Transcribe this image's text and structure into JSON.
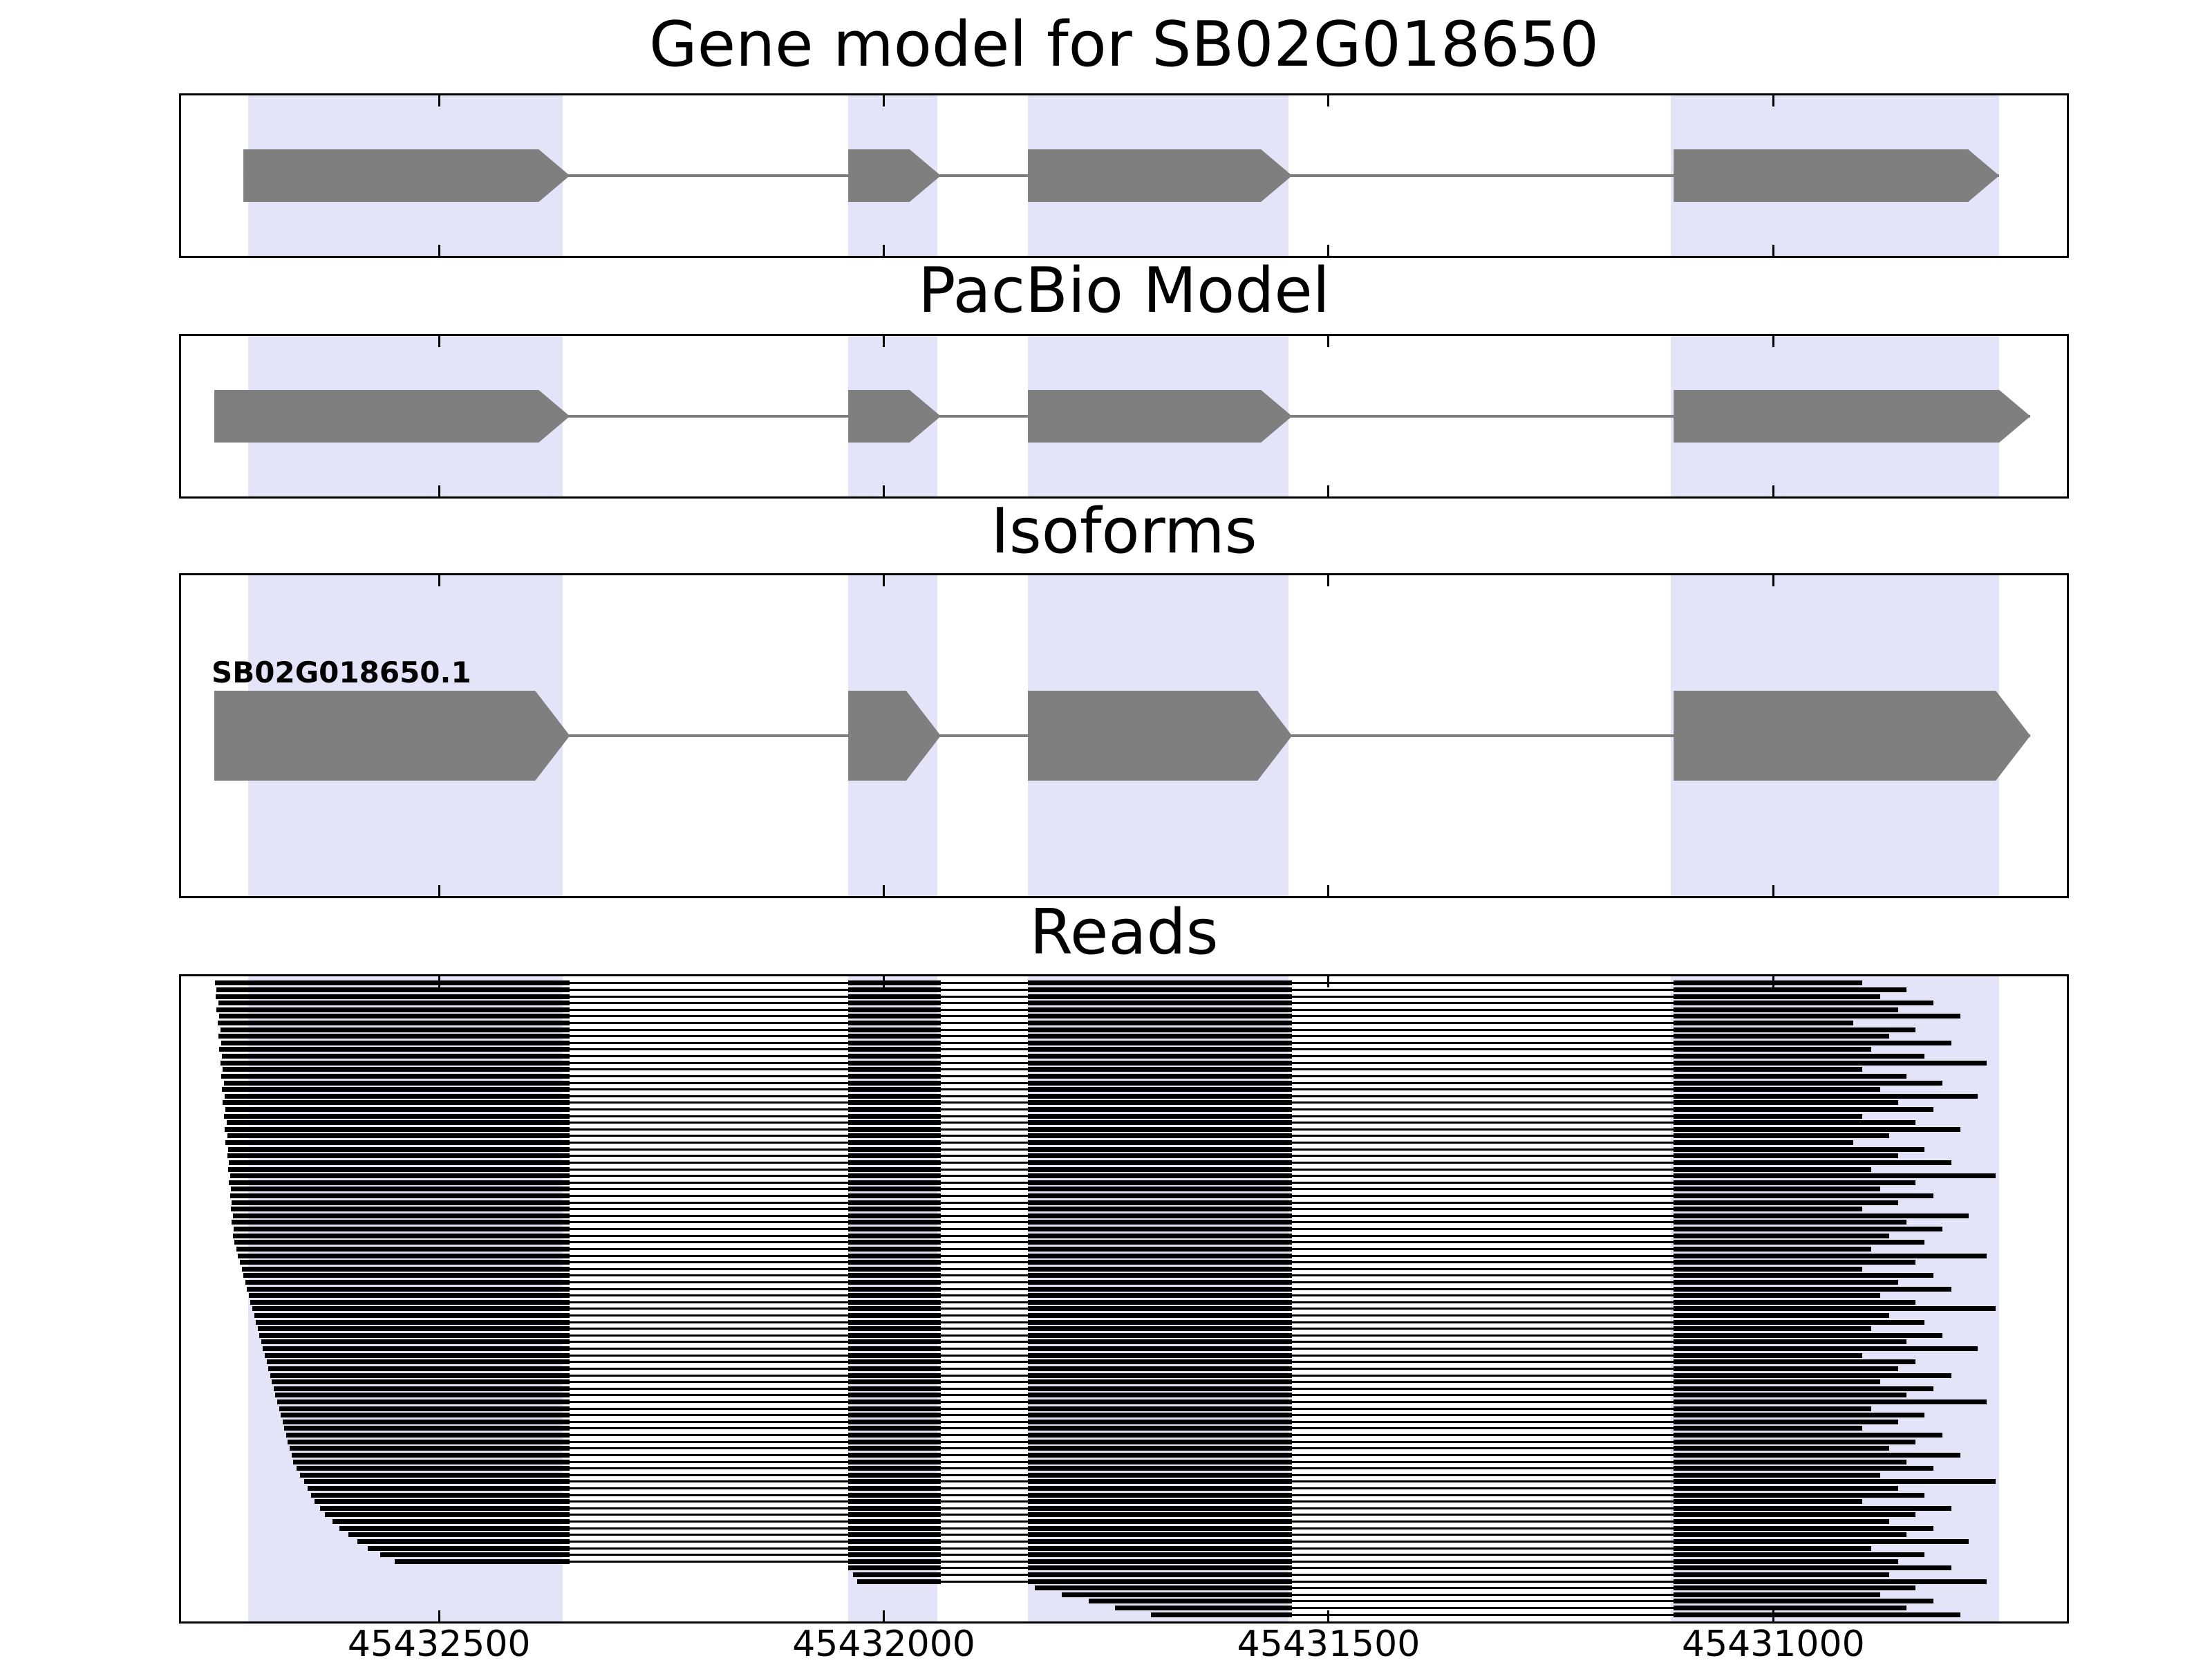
{
  "chart_data": {
    "type": "genome-tracks",
    "title": "Gene model for SB02G018650",
    "x_axis": {
      "direction": "decreasing",
      "view_max": 45432790,
      "view_min": 45430670
    },
    "x_ticks": {
      "values": [
        45432500,
        45432000,
        45431500,
        45431000
      ],
      "labels": [
        "45432500",
        "45432000",
        "45431500",
        "45431000"
      ]
    },
    "highlight_bands": [
      {
        "start": 45432715,
        "end": 45432361
      },
      {
        "start": 45432040,
        "end": 45431940
      },
      {
        "start": 45431838,
        "end": 45431545
      },
      {
        "start": 45431115,
        "end": 45430746
      }
    ],
    "colors": {
      "exon": "#7f7f7f",
      "connector": "#7f7f7f",
      "band": "#e4e4f8",
      "read": "#000000",
      "border": "#000000"
    },
    "tracks": [
      {
        "id": "gene_model",
        "title": "Gene model for SB02G018650",
        "exons": [
          [
            45432720,
            45432353
          ],
          [
            45432040,
            45431936
          ],
          [
            45431838,
            45431541
          ],
          [
            45431112,
            45430746
          ]
        ]
      },
      {
        "id": "pacbio_model",
        "title": "PacBio Model",
        "exons": [
          [
            45432753,
            45432353
          ],
          [
            45432040,
            45431936
          ],
          [
            45431838,
            45431541
          ],
          [
            45431112,
            45430711
          ]
        ]
      },
      {
        "id": "isoforms",
        "title": "Isoforms",
        "isoform_label": "SB02G018650.1",
        "exons": [
          [
            45432753,
            45432353
          ],
          [
            45432040,
            45431936
          ],
          [
            45431838,
            45431541
          ],
          [
            45431112,
            45430711
          ]
        ]
      },
      {
        "id": "reads",
        "title": "Reads",
        "exon_intervals": [
          [
            45432753,
            45432353
          ],
          [
            45432040,
            45431936
          ],
          [
            45431838,
            45431541
          ],
          [
            45431112,
            45430711
          ]
        ],
        "reads": [
          [
            45432752,
            45430900
          ],
          [
            45432750,
            45430850
          ],
          [
            45432751,
            45430880
          ],
          [
            45432748,
            45430820
          ],
          [
            45432750,
            45430860
          ],
          [
            45432747,
            45430790
          ],
          [
            45432749,
            45430910
          ],
          [
            45432746,
            45430840
          ],
          [
            45432748,
            45430870
          ],
          [
            45432745,
            45430800
          ],
          [
            45432747,
            45430890
          ],
          [
            45432744,
            45430830
          ],
          [
            45432746,
            45430760
          ],
          [
            45432743,
            45430900
          ],
          [
            45432745,
            45430850
          ],
          [
            45432742,
            45430810
          ],
          [
            45432744,
            45430880
          ],
          [
            45432741,
            45430770
          ],
          [
            45432743,
            45430860
          ],
          [
            45432740,
            45430820
          ],
          [
            45432742,
            45430900
          ],
          [
            45432739,
            45430840
          ],
          [
            45432741,
            45430790
          ],
          [
            45432738,
            45430870
          ],
          [
            45432740,
            45430910
          ],
          [
            45432737,
            45430830
          ],
          [
            45432738,
            45430860
          ],
          [
            45432736,
            45430800
          ],
          [
            45432737,
            45430890
          ],
          [
            45432735,
            45430750
          ],
          [
            45432736,
            45430840
          ],
          [
            45432734,
            45430880
          ],
          [
            45432735,
            45430820
          ],
          [
            45432733,
            45430860
          ],
          [
            45432734,
            45430900
          ],
          [
            45432732,
            45430780
          ],
          [
            45432733,
            45430850
          ],
          [
            45432731,
            45430810
          ],
          [
            45432732,
            45430870
          ],
          [
            45432730,
            45430830
          ],
          [
            45432728,
            45430890
          ],
          [
            45432726,
            45430760
          ],
          [
            45432724,
            45430840
          ],
          [
            45432722,
            45430900
          ],
          [
            45432720,
            45430820
          ],
          [
            45432718,
            45430860
          ],
          [
            45432716,
            45430800
          ],
          [
            45432714,
            45430880
          ],
          [
            45432712,
            45430840
          ],
          [
            45432710,
            45430750
          ],
          [
            45432708,
            45430870
          ],
          [
            45432706,
            45430830
          ],
          [
            45432704,
            45430890
          ],
          [
            45432702,
            45430810
          ],
          [
            45432700,
            45430850
          ],
          [
            45432698,
            45430770
          ],
          [
            45432696,
            45430900
          ],
          [
            45432694,
            45430840
          ],
          [
            45432692,
            45430860
          ],
          [
            45432690,
            45430800
          ],
          [
            45432688,
            45430880
          ],
          [
            45432686,
            45430820
          ],
          [
            45432684,
            45430850
          ],
          [
            45432682,
            45430760
          ],
          [
            45432680,
            45430890
          ],
          [
            45432678,
            45430830
          ],
          [
            45432676,
            45430860
          ],
          [
            45432674,
            45430900
          ],
          [
            45432672,
            45430810
          ],
          [
            45432670,
            45430840
          ],
          [
            45432668,
            45430870
          ],
          [
            45432666,
            45430790
          ],
          [
            45432664,
            45430850
          ],
          [
            45432660,
            45430820
          ],
          [
            45432656,
            45430880
          ],
          [
            45432652,
            45430750
          ],
          [
            45432648,
            45430860
          ],
          [
            45432644,
            45430830
          ],
          [
            45432640,
            45430900
          ],
          [
            45432634,
            45430800
          ],
          [
            45432628,
            45430840
          ],
          [
            45432620,
            45430870
          ],
          [
            45432612,
            45430820
          ],
          [
            45432602,
            45430850
          ],
          [
            45432592,
            45430780
          ],
          [
            45432580,
            45430890
          ],
          [
            45432566,
            45430830
          ],
          [
            45432550,
            45430860
          ],
          [
            45432040,
            45430800
          ],
          [
            45432035,
            45430870
          ],
          [
            45432030,
            45430760
          ],
          [
            45431830,
            45430840
          ],
          [
            45431800,
            45430880
          ],
          [
            45431770,
            45430820
          ],
          [
            45431740,
            45430850
          ],
          [
            45431700,
            45430790
          ]
        ]
      }
    ]
  }
}
